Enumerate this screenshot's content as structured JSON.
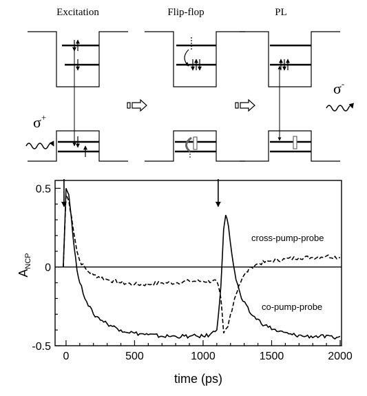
{
  "schematic": {
    "panels": [
      {
        "title": "Excitation"
      },
      {
        "title": "Flip-flop"
      },
      {
        "title": "PL"
      }
    ],
    "sigma_plus": {
      "base": "σ",
      "sup": "+"
    },
    "sigma_minus": {
      "base": "σ",
      "sup": "-"
    }
  },
  "chart_data": {
    "type": "line",
    "title": "",
    "xlabel": "time (ps)",
    "ylabel": {
      "base": "A",
      "sub": "NCP"
    },
    "xlim": [
      -80,
      2010
    ],
    "ylim": [
      -0.5,
      0.55
    ],
    "xticks": [
      0,
      500,
      1000,
      1500,
      2000
    ],
    "xtick_labels": [
      "0",
      "500",
      "1000",
      "1500",
      "2000"
    ],
    "yticks": [
      -0.5,
      0,
      0.5
    ],
    "ytick_labels": [
      "-0.5",
      "0",
      "0.5"
    ],
    "grid": false,
    "zero_line": true,
    "pulse_arrows_x": [
      -15,
      1110
    ],
    "series": [
      {
        "name": "cross-pump-probe",
        "style": "dashed",
        "points": [
          [
            -20,
            0.0
          ],
          [
            0,
            0.46
          ],
          [
            20,
            0.42
          ],
          [
            40,
            0.32
          ],
          [
            60,
            0.2
          ],
          [
            80,
            0.1
          ],
          [
            100,
            0.04
          ],
          [
            150,
            -0.02
          ],
          [
            200,
            -0.05
          ],
          [
            300,
            -0.08
          ],
          [
            400,
            -0.1
          ],
          [
            500,
            -0.11
          ],
          [
            600,
            -0.11
          ],
          [
            700,
            -0.1
          ],
          [
            800,
            -0.1
          ],
          [
            900,
            -0.09
          ],
          [
            1000,
            -0.09
          ],
          [
            1100,
            -0.09
          ],
          [
            1130,
            -0.2
          ],
          [
            1150,
            -0.42
          ],
          [
            1180,
            -0.38
          ],
          [
            1200,
            -0.3
          ],
          [
            1230,
            -0.2
          ],
          [
            1260,
            -0.12
          ],
          [
            1300,
            -0.05
          ],
          [
            1350,
            0.0
          ],
          [
            1400,
            0.02
          ],
          [
            1500,
            0.04
          ],
          [
            1600,
            0.05
          ],
          [
            1700,
            0.06
          ],
          [
            1800,
            0.06
          ],
          [
            1900,
            0.07
          ],
          [
            2000,
            0.06
          ]
        ]
      },
      {
        "name": "co-pump-probe",
        "style": "solid",
        "points": [
          [
            -20,
            0.0
          ],
          [
            0,
            0.5
          ],
          [
            20,
            0.46
          ],
          [
            40,
            0.3
          ],
          [
            60,
            0.12
          ],
          [
            80,
            -0.02
          ],
          [
            100,
            -0.1
          ],
          [
            150,
            -0.22
          ],
          [
            200,
            -0.3
          ],
          [
            300,
            -0.36
          ],
          [
            400,
            -0.4
          ],
          [
            500,
            -0.42
          ],
          [
            600,
            -0.43
          ],
          [
            700,
            -0.44
          ],
          [
            800,
            -0.44
          ],
          [
            900,
            -0.44
          ],
          [
            1000,
            -0.44
          ],
          [
            1050,
            -0.43
          ],
          [
            1100,
            -0.4
          ],
          [
            1130,
            -0.12
          ],
          [
            1150,
            0.24
          ],
          [
            1165,
            0.33
          ],
          [
            1185,
            0.26
          ],
          [
            1210,
            0.08
          ],
          [
            1240,
            -0.08
          ],
          [
            1280,
            -0.2
          ],
          [
            1350,
            -0.3
          ],
          [
            1450,
            -0.37
          ],
          [
            1550,
            -0.41
          ],
          [
            1650,
            -0.43
          ],
          [
            1750,
            -0.44
          ],
          [
            1850,
            -0.44
          ],
          [
            1950,
            -0.45
          ],
          [
            2000,
            -0.44
          ]
        ]
      }
    ]
  }
}
